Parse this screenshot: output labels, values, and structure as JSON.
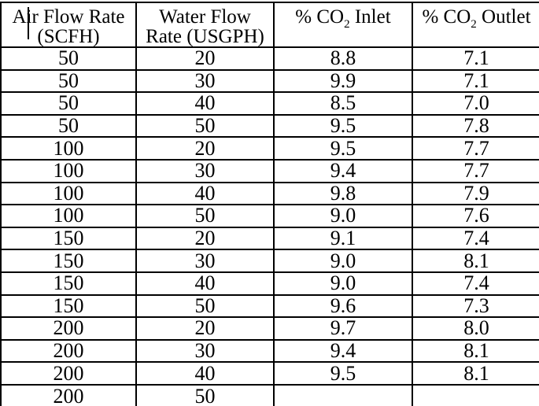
{
  "colors": {
    "background": "#ffffff",
    "border": "#000000",
    "text": "#000000"
  },
  "table": {
    "columns": [
      {
        "line1": "Air Flow Rate",
        "line2": "(SCFH)"
      },
      {
        "line1": "Water Flow",
        "line2": "Rate (USGPH)"
      },
      {
        "prefix": "% CO",
        "subscript": "2",
        "suffix": " Inlet"
      },
      {
        "prefix": "% CO",
        "subscript": "2",
        "suffix": " Outlet"
      }
    ],
    "rows": [
      [
        "50",
        "20",
        "8.8",
        "7.1"
      ],
      [
        "50",
        "30",
        "9.9",
        "7.1"
      ],
      [
        "50",
        "40",
        "8.5",
        "7.0"
      ],
      [
        "50",
        "50",
        "9.5",
        "7.8"
      ],
      [
        "100",
        "20",
        "9.5",
        "7.7"
      ],
      [
        "100",
        "30",
        "9.4",
        "7.7"
      ],
      [
        "100",
        "40",
        "9.8",
        "7.9"
      ],
      [
        "100",
        "50",
        "9.0",
        "7.6"
      ],
      [
        "150",
        "20",
        "9.1",
        "7.4"
      ],
      [
        "150",
        "30",
        "9.0",
        "8.1"
      ],
      [
        "150",
        "40",
        "9.0",
        "7.4"
      ],
      [
        "150",
        "50",
        "9.6",
        "7.3"
      ],
      [
        "200",
        "20",
        "9.7",
        "8.0"
      ],
      [
        "200",
        "30",
        "9.4",
        "8.1"
      ],
      [
        "200",
        "40",
        "9.5",
        "8.1"
      ],
      [
        "200",
        "50",
        "",
        ""
      ]
    ]
  }
}
